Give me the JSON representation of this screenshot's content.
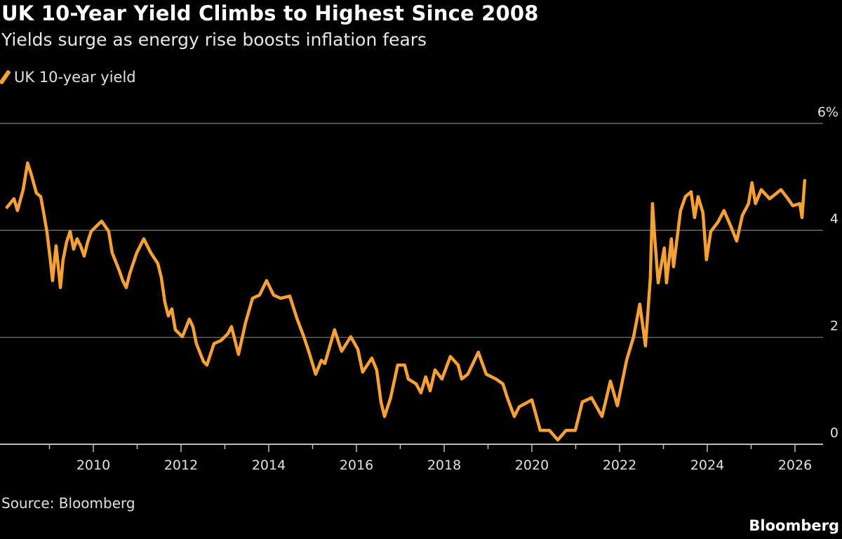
{
  "chart_data": {
    "type": "line",
    "title": "UK 10-Year Yield Climbs to Highest Since 2008",
    "subtitle": "Yields surge as energy rise boosts inflation fears",
    "xlabel": "",
    "ylabel": "",
    "xlim": [
      2008,
      2026.4
    ],
    "ylim": [
      0,
      6
    ],
    "y_ticks": [
      {
        "value": 0,
        "label": "0"
      },
      {
        "value": 2,
        "label": "2"
      },
      {
        "value": 4,
        "label": "4"
      },
      {
        "value": 6,
        "label": "6%"
      }
    ],
    "x_ticks_major": [
      {
        "value": 2010,
        "label": "2010"
      },
      {
        "value": 2012,
        "label": "2012"
      },
      {
        "value": 2014,
        "label": "2014"
      },
      {
        "value": 2016,
        "label": "2016"
      },
      {
        "value": 2018,
        "label": "2018"
      },
      {
        "value": 2020,
        "label": "2020"
      },
      {
        "value": 2022,
        "label": "2022"
      },
      {
        "value": 2024,
        "label": "2024"
      },
      {
        "value": 2026,
        "label": "2026"
      }
    ],
    "x_ticks_minor": [
      2009,
      2011,
      2013,
      2015,
      2017,
      2019,
      2021,
      2023,
      2025
    ],
    "grid": "horizontal",
    "legend_placement": "top-left",
    "colors": {
      "series": "#f7a033",
      "background": "#000000",
      "grid": "#6e6e6e"
    },
    "series": [
      {
        "name": "UK 10-year yield",
        "points": [
          [
            2008.03,
            4.43
          ],
          [
            2008.19,
            4.59
          ],
          [
            2008.27,
            4.37
          ],
          [
            2008.4,
            4.76
          ],
          [
            2008.5,
            5.26
          ],
          [
            2008.59,
            5.03
          ],
          [
            2008.7,
            4.7
          ],
          [
            2008.8,
            4.63
          ],
          [
            2008.86,
            4.37
          ],
          [
            2008.94,
            3.98
          ],
          [
            2009.02,
            3.45
          ],
          [
            2009.07,
            3.06
          ],
          [
            2009.15,
            3.71
          ],
          [
            2009.25,
            2.93
          ],
          [
            2009.31,
            3.45
          ],
          [
            2009.39,
            3.78
          ],
          [
            2009.47,
            3.98
          ],
          [
            2009.55,
            3.65
          ],
          [
            2009.63,
            3.84
          ],
          [
            2009.71,
            3.71
          ],
          [
            2009.79,
            3.52
          ],
          [
            2009.87,
            3.78
          ],
          [
            2009.95,
            3.98
          ],
          [
            2010.11,
            4.11
          ],
          [
            2010.19,
            4.17
          ],
          [
            2010.35,
            3.98
          ],
          [
            2010.43,
            3.58
          ],
          [
            2010.59,
            3.25
          ],
          [
            2010.67,
            3.06
          ],
          [
            2010.75,
            2.93
          ],
          [
            2010.83,
            3.19
          ],
          [
            2010.99,
            3.58
          ],
          [
            2011.15,
            3.84
          ],
          [
            2011.31,
            3.58
          ],
          [
            2011.47,
            3.38
          ],
          [
            2011.55,
            3.12
          ],
          [
            2011.63,
            2.66
          ],
          [
            2011.71,
            2.4
          ],
          [
            2011.79,
            2.53
          ],
          [
            2011.87,
            2.14
          ],
          [
            2012.03,
            2.01
          ],
          [
            2012.19,
            2.34
          ],
          [
            2012.27,
            2.2
          ],
          [
            2012.35,
            1.88
          ],
          [
            2012.51,
            1.55
          ],
          [
            2012.59,
            1.48
          ],
          [
            2012.75,
            1.88
          ],
          [
            2012.91,
            1.94
          ],
          [
            2013.07,
            2.07
          ],
          [
            2013.15,
            2.2
          ],
          [
            2013.31,
            1.68
          ],
          [
            2013.47,
            2.27
          ],
          [
            2013.63,
            2.73
          ],
          [
            2013.79,
            2.79
          ],
          [
            2013.95,
            3.06
          ],
          [
            2014.11,
            2.79
          ],
          [
            2014.27,
            2.73
          ],
          [
            2014.48,
            2.77
          ],
          [
            2014.64,
            2.36
          ],
          [
            2014.8,
            2.01
          ],
          [
            2014.91,
            1.74
          ],
          [
            2015.07,
            1.31
          ],
          [
            2015.2,
            1.57
          ],
          [
            2015.28,
            1.51
          ],
          [
            2015.5,
            2.14
          ],
          [
            2015.66,
            1.74
          ],
          [
            2015.87,
            2.01
          ],
          [
            2016.03,
            1.78
          ],
          [
            2016.14,
            1.35
          ],
          [
            2016.35,
            1.61
          ],
          [
            2016.46,
            1.39
          ],
          [
            2016.56,
            0.79
          ],
          [
            2016.64,
            0.52
          ],
          [
            2016.78,
            0.87
          ],
          [
            2016.94,
            1.48
          ],
          [
            2017.1,
            1.48
          ],
          [
            2017.18,
            1.22
          ],
          [
            2017.36,
            1.13
          ],
          [
            2017.47,
            0.96
          ],
          [
            2017.58,
            1.26
          ],
          [
            2017.68,
            1.0
          ],
          [
            2017.79,
            1.39
          ],
          [
            2017.95,
            1.22
          ],
          [
            2018.14,
            1.64
          ],
          [
            2018.32,
            1.48
          ],
          [
            2018.4,
            1.22
          ],
          [
            2018.54,
            1.31
          ],
          [
            2018.78,
            1.72
          ],
          [
            2018.96,
            1.31
          ],
          [
            2019.18,
            1.22
          ],
          [
            2019.34,
            1.13
          ],
          [
            2019.44,
            0.87
          ],
          [
            2019.6,
            0.52
          ],
          [
            2019.71,
            0.7
          ],
          [
            2020.0,
            0.83
          ],
          [
            2020.19,
            0.26
          ],
          [
            2020.4,
            0.26
          ],
          [
            2020.59,
            0.08
          ],
          [
            2020.78,
            0.26
          ],
          [
            2020.99,
            0.26
          ],
          [
            2021.15,
            0.79
          ],
          [
            2021.36,
            0.87
          ],
          [
            2021.6,
            0.52
          ],
          [
            2021.79,
            1.18
          ],
          [
            2021.95,
            0.72
          ],
          [
            2022.16,
            1.57
          ],
          [
            2022.32,
            2.01
          ],
          [
            2022.46,
            2.62
          ],
          [
            2022.59,
            1.84
          ],
          [
            2022.7,
            3.1
          ],
          [
            2022.75,
            4.5
          ],
          [
            2022.8,
            3.88
          ],
          [
            2022.88,
            3.02
          ],
          [
            2023.02,
            3.67
          ],
          [
            2023.07,
            3.02
          ],
          [
            2023.18,
            3.84
          ],
          [
            2023.23,
            3.32
          ],
          [
            2023.39,
            4.37
          ],
          [
            2023.5,
            4.63
          ],
          [
            2023.63,
            4.72
          ],
          [
            2023.71,
            4.24
          ],
          [
            2023.79,
            4.63
          ],
          [
            2023.9,
            4.33
          ],
          [
            2023.98,
            3.45
          ],
          [
            2024.08,
            3.98
          ],
          [
            2024.24,
            4.15
          ],
          [
            2024.38,
            4.37
          ],
          [
            2024.54,
            4.07
          ],
          [
            2024.67,
            3.8
          ],
          [
            2024.8,
            4.28
          ],
          [
            2024.94,
            4.5
          ],
          [
            2025.02,
            4.89
          ],
          [
            2025.1,
            4.5
          ],
          [
            2025.23,
            4.76
          ],
          [
            2025.42,
            4.59
          ],
          [
            2025.68,
            4.76
          ],
          [
            2025.84,
            4.59
          ],
          [
            2025.95,
            4.46
          ],
          [
            2026.11,
            4.5
          ],
          [
            2026.16,
            4.24
          ],
          [
            2026.22,
            4.93
          ]
        ]
      }
    ]
  },
  "legend": {
    "label": "UK 10-year yield"
  },
  "source": "Source: Bloomberg",
  "logo": "Bloomberg"
}
